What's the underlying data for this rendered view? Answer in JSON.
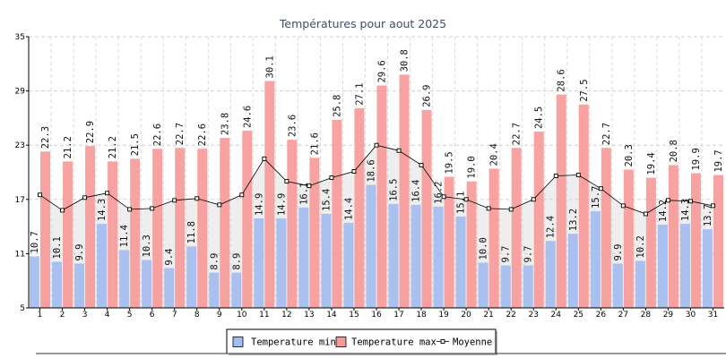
{
  "chart_data": {
    "type": "bar",
    "title": "Températures pour aout 2025",
    "xlabel": "",
    "ylabel": "",
    "ylim": [
      5,
      35
    ],
    "yticks": [
      5,
      11,
      17,
      23,
      29,
      35
    ],
    "grid": true,
    "categories": [
      "1",
      "2",
      "3",
      "4",
      "5",
      "6",
      "7",
      "8",
      "9",
      "10",
      "11",
      "12",
      "13",
      "14",
      "15",
      "16",
      "17",
      "18",
      "19",
      "20",
      "21",
      "22",
      "23",
      "24",
      "25",
      "26",
      "27",
      "28",
      "29",
      "30",
      "31"
    ],
    "series": [
      {
        "name": "Temperature min",
        "type": "bar",
        "color": "#a4bdf0",
        "values": [
          10.7,
          10.1,
          9.9,
          14.3,
          11.4,
          10.3,
          9.4,
          11.8,
          8.9,
          8.9,
          14.9,
          14.9,
          16.1,
          15.4,
          14.4,
          18.6,
          16.5,
          16.4,
          16.2,
          15.1,
          10.0,
          9.7,
          9.7,
          12.4,
          13.2,
          15.7,
          9.9,
          10.2,
          14.2,
          14.3,
          13.7
        ]
      },
      {
        "name": "Temperature max",
        "type": "bar",
        "color": "#f79a9a",
        "values": [
          22.3,
          21.2,
          22.9,
          21.2,
          21.5,
          22.6,
          22.7,
          22.6,
          23.8,
          24.6,
          30.1,
          23.6,
          21.6,
          25.8,
          27.1,
          29.6,
          30.8,
          26.9,
          19.5,
          19.0,
          20.4,
          22.7,
          24.5,
          28.6,
          27.5,
          22.7,
          20.3,
          19.4,
          20.8,
          19.9,
          19.7
        ]
      },
      {
        "name": "Moyenne",
        "type": "line",
        "color": "#000000",
        "values": [
          17.5,
          15.8,
          17.2,
          17.7,
          15.9,
          16.0,
          16.9,
          17.1,
          16.4,
          17.5,
          21.5,
          19.0,
          18.5,
          19.4,
          20.1,
          23.0,
          22.4,
          20.8,
          17.3,
          17.0,
          16.0,
          15.9,
          17.0,
          19.6,
          19.7,
          18.2,
          16.3,
          15.4,
          16.9,
          16.8,
          16.3
        ]
      }
    ],
    "legend": {
      "position": "bottom"
    }
  }
}
